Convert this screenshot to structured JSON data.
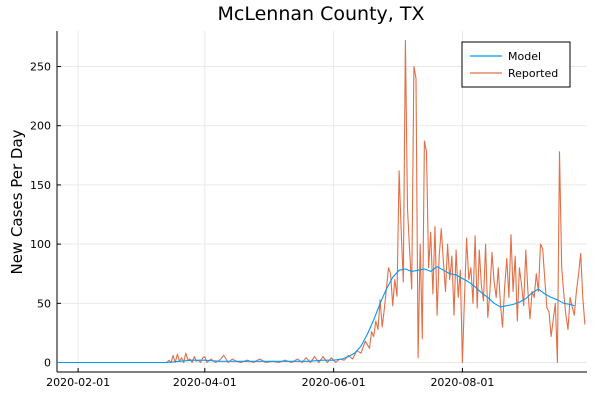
{
  "chart_data": {
    "type": "line",
    "title": "McLennan County, TX",
    "xlabel": "",
    "ylabel": "New Cases Per Day",
    "x_ticks": [
      "2020-02-01",
      "2020-04-01",
      "2020-06-01",
      "2020-08-01"
    ],
    "y_ticks": [
      0,
      50,
      100,
      150,
      200,
      250
    ],
    "xlim": [
      "2020-01-22",
      "2020-09-29"
    ],
    "ylim": [
      -8,
      280
    ],
    "grid": true,
    "legend": "top-right",
    "series": [
      {
        "name": "Model",
        "color": "#009AFA",
        "points": [
          [
            "2020-01-22",
            0
          ],
          [
            "2020-03-14",
            0
          ],
          [
            "2020-03-20",
            1
          ],
          [
            "2020-03-26",
            2
          ],
          [
            "2020-04-01",
            2
          ],
          [
            "2020-04-08",
            1
          ],
          [
            "2020-04-15",
            1
          ],
          [
            "2020-04-22",
            1
          ],
          [
            "2020-04-29",
            1
          ],
          [
            "2020-05-06",
            1
          ],
          [
            "2020-05-13",
            1
          ],
          [
            "2020-05-20",
            1
          ],
          [
            "2020-05-27",
            2
          ],
          [
            "2020-06-01",
            2
          ],
          [
            "2020-06-05",
            3
          ],
          [
            "2020-06-08",
            5
          ],
          [
            "2020-06-11",
            8
          ],
          [
            "2020-06-14",
            14
          ],
          [
            "2020-06-17",
            24
          ],
          [
            "2020-06-20",
            36
          ],
          [
            "2020-06-23",
            50
          ],
          [
            "2020-06-26",
            62
          ],
          [
            "2020-06-29",
            72
          ],
          [
            "2020-07-02",
            78
          ],
          [
            "2020-07-05",
            79
          ],
          [
            "2020-07-08",
            77
          ],
          [
            "2020-07-11",
            78
          ],
          [
            "2020-07-14",
            79
          ],
          [
            "2020-07-17",
            77
          ],
          [
            "2020-07-20",
            81
          ],
          [
            "2020-07-23",
            78
          ],
          [
            "2020-07-26",
            75
          ],
          [
            "2020-07-29",
            74
          ],
          [
            "2020-08-01",
            71
          ],
          [
            "2020-08-04",
            68
          ],
          [
            "2020-08-07",
            64
          ],
          [
            "2020-08-10",
            59
          ],
          [
            "2020-08-13",
            55
          ],
          [
            "2020-08-16",
            50
          ],
          [
            "2020-08-19",
            47
          ],
          [
            "2020-08-22",
            48
          ],
          [
            "2020-08-25",
            49
          ],
          [
            "2020-08-28",
            51
          ],
          [
            "2020-08-31",
            54
          ],
          [
            "2020-09-03",
            59
          ],
          [
            "2020-09-06",
            62
          ],
          [
            "2020-09-09",
            58
          ],
          [
            "2020-09-12",
            55
          ],
          [
            "2020-09-15",
            53
          ],
          [
            "2020-09-18",
            50
          ],
          [
            "2020-09-21",
            49
          ],
          [
            "2020-09-23",
            48
          ]
        ]
      },
      {
        "name": "Reported",
        "color": "#E26F46",
        "points": [
          [
            "2020-01-22",
            0
          ],
          [
            "2020-03-14",
            0
          ],
          [
            "2020-03-15",
            2
          ],
          [
            "2020-03-16",
            0
          ],
          [
            "2020-03-17",
            6
          ],
          [
            "2020-03-18",
            0
          ],
          [
            "2020-03-19",
            7
          ],
          [
            "2020-03-20",
            1
          ],
          [
            "2020-03-21",
            4
          ],
          [
            "2020-03-22",
            0
          ],
          [
            "2020-03-23",
            8
          ],
          [
            "2020-03-24",
            2
          ],
          [
            "2020-03-25",
            3
          ],
          [
            "2020-03-26",
            0
          ],
          [
            "2020-03-27",
            5
          ],
          [
            "2020-03-28",
            1
          ],
          [
            "2020-03-29",
            2
          ],
          [
            "2020-03-30",
            0
          ],
          [
            "2020-03-31",
            4
          ],
          [
            "2020-04-01",
            5
          ],
          [
            "2020-04-02",
            0
          ],
          [
            "2020-04-04",
            3
          ],
          [
            "2020-04-06",
            0
          ],
          [
            "2020-04-08",
            2
          ],
          [
            "2020-04-10",
            6
          ],
          [
            "2020-04-12",
            0
          ],
          [
            "2020-04-14",
            3
          ],
          [
            "2020-04-16",
            1
          ],
          [
            "2020-04-18",
            0
          ],
          [
            "2020-04-21",
            2
          ],
          [
            "2020-04-24",
            0
          ],
          [
            "2020-04-27",
            3
          ],
          [
            "2020-04-30",
            0
          ],
          [
            "2020-05-03",
            1
          ],
          [
            "2020-05-06",
            0
          ],
          [
            "2020-05-09",
            2
          ],
          [
            "2020-05-12",
            0
          ],
          [
            "2020-05-15",
            3
          ],
          [
            "2020-05-17",
            0
          ],
          [
            "2020-05-19",
            4
          ],
          [
            "2020-05-21",
            0
          ],
          [
            "2020-05-23",
            5
          ],
          [
            "2020-05-25",
            0
          ],
          [
            "2020-05-27",
            5
          ],
          [
            "2020-05-29",
            0
          ],
          [
            "2020-05-31",
            4
          ],
          [
            "2020-06-02",
            0
          ],
          [
            "2020-06-04",
            3
          ],
          [
            "2020-06-06",
            2
          ],
          [
            "2020-06-08",
            6
          ],
          [
            "2020-06-10",
            3
          ],
          [
            "2020-06-12",
            10
          ],
          [
            "2020-06-14",
            8
          ],
          [
            "2020-06-16",
            18
          ],
          [
            "2020-06-18",
            12
          ],
          [
            "2020-06-19",
            26
          ],
          [
            "2020-06-20",
            22
          ],
          [
            "2020-06-21",
            35
          ],
          [
            "2020-06-22",
            28
          ],
          [
            "2020-06-23",
            53
          ],
          [
            "2020-06-24",
            30
          ],
          [
            "2020-06-25",
            45
          ],
          [
            "2020-06-26",
            62
          ],
          [
            "2020-06-27",
            80
          ],
          [
            "2020-06-28",
            75
          ],
          [
            "2020-06-29",
            48
          ],
          [
            "2020-06-30",
            70
          ],
          [
            "2020-07-01",
            56
          ],
          [
            "2020-07-02",
            162
          ],
          [
            "2020-07-03",
            111
          ],
          [
            "2020-07-04",
            68
          ],
          [
            "2020-07-05",
            272
          ],
          [
            "2020-07-06",
            130
          ],
          [
            "2020-07-07",
            95
          ],
          [
            "2020-07-08",
            62
          ],
          [
            "2020-07-09",
            250
          ],
          [
            "2020-07-10",
            240
          ],
          [
            "2020-07-11",
            4
          ],
          [
            "2020-07-12",
            100
          ],
          [
            "2020-07-13",
            20
          ],
          [
            "2020-07-14",
            187
          ],
          [
            "2020-07-15",
            178
          ],
          [
            "2020-07-16",
            80
          ],
          [
            "2020-07-17",
            110
          ],
          [
            "2020-07-18",
            58
          ],
          [
            "2020-07-19",
            115
          ],
          [
            "2020-07-20",
            40
          ],
          [
            "2020-07-21",
            90
          ],
          [
            "2020-07-22",
            113
          ],
          [
            "2020-07-23",
            85
          ],
          [
            "2020-07-24",
            60
          ],
          [
            "2020-07-25",
            100
          ],
          [
            "2020-07-26",
            70
          ],
          [
            "2020-07-27",
            90
          ],
          [
            "2020-07-28",
            40
          ],
          [
            "2020-07-29",
            95
          ],
          [
            "2020-07-30",
            55
          ],
          [
            "2020-07-31",
            78
          ],
          [
            "2020-08-01",
            0
          ],
          [
            "2020-08-02",
            55
          ],
          [
            "2020-08-03",
            105
          ],
          [
            "2020-08-04",
            70
          ],
          [
            "2020-08-05",
            80
          ],
          [
            "2020-08-06",
            50
          ],
          [
            "2020-08-07",
            107
          ],
          [
            "2020-08-08",
            46
          ],
          [
            "2020-08-09",
            95
          ],
          [
            "2020-08-10",
            65
          ],
          [
            "2020-08-11",
            52
          ],
          [
            "2020-08-12",
            100
          ],
          [
            "2020-08-13",
            38
          ],
          [
            "2020-08-14",
            60
          ],
          [
            "2020-08-15",
            93
          ],
          [
            "2020-08-16",
            68
          ],
          [
            "2020-08-17",
            55
          ],
          [
            "2020-08-18",
            80
          ],
          [
            "2020-08-19",
            50
          ],
          [
            "2020-08-20",
            30
          ],
          [
            "2020-08-21",
            63
          ],
          [
            "2020-08-22",
            88
          ],
          [
            "2020-08-23",
            55
          ],
          [
            "2020-08-24",
            108
          ],
          [
            "2020-08-25",
            60
          ],
          [
            "2020-08-26",
            90
          ],
          [
            "2020-08-27",
            35
          ],
          [
            "2020-08-28",
            80
          ],
          [
            "2020-08-29",
            66
          ],
          [
            "2020-08-30",
            48
          ],
          [
            "2020-08-31",
            95
          ],
          [
            "2020-09-01",
            60
          ],
          [
            "2020-09-02",
            37
          ],
          [
            "2020-09-03",
            60
          ],
          [
            "2020-09-04",
            55
          ],
          [
            "2020-09-05",
            75
          ],
          [
            "2020-09-06",
            60
          ],
          [
            "2020-09-07",
            100
          ],
          [
            "2020-09-08",
            96
          ],
          [
            "2020-09-09",
            70
          ],
          [
            "2020-09-10",
            46
          ],
          [
            "2020-09-11",
            43
          ],
          [
            "2020-09-12",
            22
          ],
          [
            "2020-09-13",
            36
          ],
          [
            "2020-09-14",
            50
          ],
          [
            "2020-09-15",
            0
          ],
          [
            "2020-09-16",
            178
          ],
          [
            "2020-09-17",
            80
          ],
          [
            "2020-09-18",
            58
          ],
          [
            "2020-09-19",
            40
          ],
          [
            "2020-09-20",
            28
          ],
          [
            "2020-09-21",
            55
          ],
          [
            "2020-09-22",
            47
          ],
          [
            "2020-09-23",
            40
          ],
          [
            "2020-09-24",
            60
          ],
          [
            "2020-09-25",
            75
          ],
          [
            "2020-09-26",
            92
          ],
          [
            "2020-09-27",
            55
          ],
          [
            "2020-09-28",
            32
          ]
        ]
      }
    ]
  }
}
